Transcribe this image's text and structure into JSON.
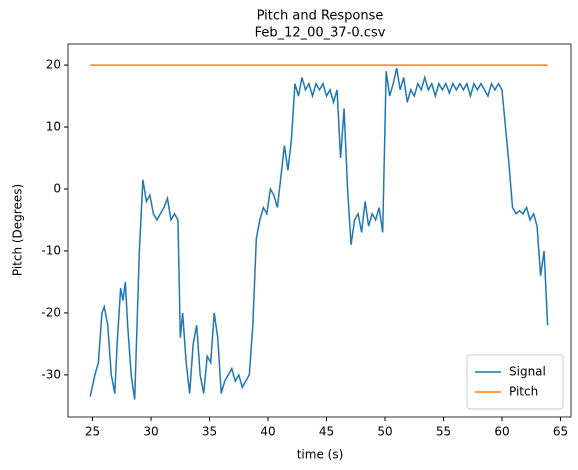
{
  "chart_data": {
    "type": "line",
    "title": "Pitch and Response",
    "subtitle": "Feb_12_00_37-0.csv",
    "xlabel": "time (s)",
    "ylabel": "Pitch (Degrees)",
    "xlim": [
      22.9,
      65.9
    ],
    "ylim": [
      -36.8,
      23.4
    ],
    "xticks": [
      25,
      30,
      35,
      40,
      45,
      50,
      55,
      60,
      65
    ],
    "yticks": [
      -30,
      -20,
      -10,
      0,
      10,
      20
    ],
    "legend": "lower right",
    "series": [
      {
        "name": "Signal",
        "color": "#1f77b4",
        "x": [
          24.8,
          25.2,
          25.5,
          25.8,
          26.0,
          26.3,
          26.6,
          26.9,
          27.1,
          27.4,
          27.6,
          27.8,
          28.0,
          28.3,
          28.6,
          28.8,
          29.0,
          29.3,
          29.6,
          29.9,
          30.2,
          30.5,
          30.8,
          31.1,
          31.4,
          31.7,
          32.0,
          32.3,
          32.5,
          32.7,
          33.0,
          33.3,
          33.6,
          33.9,
          34.2,
          34.5,
          34.8,
          35.1,
          35.4,
          35.7,
          36.0,
          36.3,
          36.6,
          36.9,
          37.2,
          37.5,
          37.8,
          38.1,
          38.4,
          38.7,
          39.0,
          39.3,
          39.6,
          39.9,
          40.2,
          40.5,
          40.8,
          41.1,
          41.4,
          41.7,
          42.0,
          42.3,
          42.6,
          42.9,
          43.2,
          43.5,
          43.8,
          44.1,
          44.4,
          44.7,
          45.0,
          45.3,
          45.6,
          45.9,
          46.2,
          46.5,
          46.8,
          47.1,
          47.4,
          47.7,
          48.0,
          48.3,
          48.6,
          48.9,
          49.2,
          49.5,
          49.8,
          50.1,
          50.4,
          50.7,
          51.0,
          51.3,
          51.6,
          51.9,
          52.2,
          52.5,
          52.8,
          53.1,
          53.4,
          53.7,
          54.0,
          54.3,
          54.6,
          54.9,
          55.2,
          55.5,
          55.8,
          56.1,
          56.4,
          56.7,
          57.0,
          57.3,
          57.6,
          57.9,
          58.2,
          58.5,
          58.8,
          59.1,
          59.4,
          59.7,
          60.0,
          60.3,
          60.6,
          60.9,
          61.2,
          61.5,
          61.8,
          62.1,
          62.4,
          62.7,
          63.0,
          63.3,
          63.6,
          63.9
        ],
        "values": [
          -33.5,
          -30,
          -28,
          -20,
          -19,
          -22,
          -30,
          -33,
          -25,
          -16,
          -18,
          -15,
          -22,
          -30,
          -34,
          -22,
          -10,
          1.5,
          -2,
          -1,
          -4,
          -5,
          -4,
          -3,
          -1.5,
          -5,
          -4,
          -5,
          -24,
          -20,
          -28,
          -33,
          -25,
          -22,
          -30,
          -33,
          -27,
          -28,
          -20,
          -24,
          -33,
          -31,
          -30,
          -29,
          -31,
          -30,
          -32,
          -31,
          -30,
          -22,
          -8,
          -5,
          -3,
          -4,
          0,
          -1,
          -3,
          2,
          7,
          3,
          8,
          17,
          15,
          18,
          16,
          17,
          15,
          17,
          16,
          17,
          15,
          16,
          14,
          16,
          5,
          13,
          0,
          -9,
          -5,
          -4,
          -7,
          -2,
          -6,
          -4,
          -5,
          -3,
          -7,
          19,
          15,
          17,
          19.5,
          16,
          18,
          14,
          16,
          15,
          17,
          16,
          18,
          16,
          17,
          15,
          17,
          16,
          17,
          15.5,
          17,
          16,
          17,
          16,
          17,
          15,
          17,
          16,
          17,
          16,
          15,
          17,
          16,
          17,
          16,
          10,
          4,
          -3,
          -4,
          -3.5,
          -4,
          -3,
          -5,
          -4,
          -6,
          -14,
          -10,
          -22
        ]
      },
      {
        "name": "Pitch",
        "color": "#ff7f0e",
        "x": [
          24.8,
          63.9
        ],
        "values": [
          20,
          20
        ]
      }
    ]
  }
}
